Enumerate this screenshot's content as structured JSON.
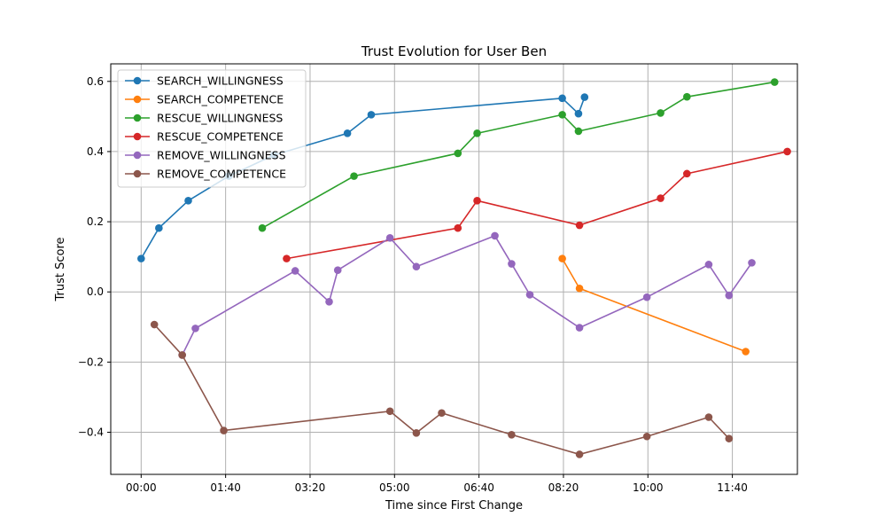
{
  "chart_data": {
    "type": "line",
    "title": "Trust Evolution for User Ben",
    "xlabel": "Time since First Change",
    "ylabel": "Trust Score",
    "xlim": [
      -0.6,
      12.95
    ],
    "ylim": [
      -0.52,
      0.65
    ],
    "x_unit": "minutes",
    "x_ticks": [
      0,
      1.6667,
      3.3333,
      5,
      6.6667,
      8.3333,
      10,
      11.6667
    ],
    "x_tick_labels": [
      "00:00",
      "01:40",
      "03:20",
      "05:00",
      "06:40",
      "08:20",
      "10:00",
      "11:40"
    ],
    "y_ticks": [
      -0.4,
      -0.2,
      0.0,
      0.2,
      0.4,
      0.6
    ],
    "y_tick_labels": [
      "−0.4",
      "−0.2",
      "0.0",
      "0.2",
      "0.4",
      "0.6"
    ],
    "grid": true,
    "legend_position": "top-left",
    "series": [
      {
        "name": "SEARCH_WILLINGNESS",
        "color": "#1f77b4",
        "x": [
          0.0,
          0.35,
          0.93,
          1.73,
          2.62,
          4.07,
          4.54,
          8.31,
          8.63,
          8.75
        ],
        "y": [
          0.095,
          0.182,
          0.26,
          0.33,
          0.39,
          0.452,
          0.505,
          0.552,
          0.508,
          0.555
        ]
      },
      {
        "name": "SEARCH_COMPETENCE",
        "color": "#ff7f0e",
        "x": [
          8.31,
          8.65,
          11.93
        ],
        "y": [
          0.095,
          0.01,
          -0.17
        ]
      },
      {
        "name": "RESCUE_WILLINGNESS",
        "color": "#2ca02c",
        "x": [
          2.39,
          4.2,
          6.25,
          6.63,
          8.31,
          8.63,
          10.25,
          10.77,
          12.5
        ],
        "y": [
          0.182,
          0.33,
          0.395,
          0.452,
          0.505,
          0.458,
          0.51,
          0.556,
          0.598
        ]
      },
      {
        "name": "RESCUE_COMPETENCE",
        "color": "#d62728",
        "x": [
          2.87,
          6.25,
          6.63,
          8.65,
          10.25,
          10.77,
          12.75
        ],
        "y": [
          0.095,
          0.182,
          0.26,
          0.19,
          0.267,
          0.337,
          0.4
        ]
      },
      {
        "name": "REMOVE_WILLINGNESS",
        "color": "#9467bd",
        "x": [
          0.81,
          1.07,
          3.04,
          3.71,
          3.88,
          4.91,
          5.43,
          6.98,
          7.31,
          7.67,
          8.65,
          9.98,
          11.2,
          11.6,
          12.05
        ],
        "y": [
          -0.18,
          -0.104,
          0.06,
          -0.028,
          0.062,
          0.154,
          0.072,
          0.16,
          0.08,
          -0.008,
          -0.102,
          -0.015,
          0.078,
          -0.01,
          0.083
        ]
      },
      {
        "name": "REMOVE_COMPETENCE",
        "color": "#8c564b",
        "x": [
          0.26,
          0.81,
          1.63,
          4.91,
          5.43,
          5.93,
          7.31,
          8.65,
          9.98,
          11.2,
          11.6
        ],
        "y": [
          -0.093,
          -0.18,
          -0.395,
          -0.34,
          -0.402,
          -0.345,
          -0.407,
          -0.463,
          -0.412,
          -0.357,
          -0.418
        ]
      }
    ]
  }
}
